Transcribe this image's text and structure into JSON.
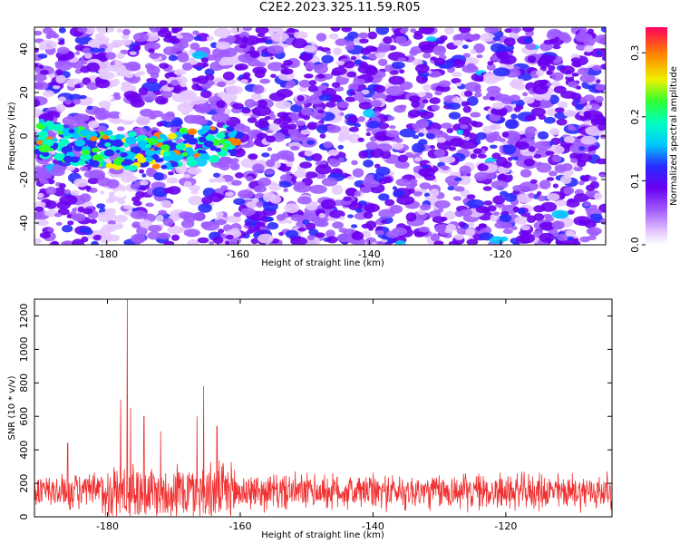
{
  "title": "C2E2.2023.325.11.59.R05",
  "chart_data": [
    {
      "type": "heatmap",
      "xlabel": "Height of straight line (km)",
      "ylabel": "Frequency (Hz)",
      "xlim": [
        -191,
        -104
      ],
      "ylim": [
        -50,
        50
      ],
      "xticks": [
        -180,
        -160,
        -140,
        -120
      ],
      "yticks": [
        -40,
        -20,
        0,
        20,
        40
      ],
      "colorbar": {
        "label": "Normalized spectral amplitude",
        "range": [
          0.0,
          0.34
        ],
        "ticks": [
          0.0,
          0.1,
          0.2,
          0.3
        ],
        "colormap": [
          "#ffffff",
          "#e6c8ff",
          "#a05cff",
          "#6a00f0",
          "#2a2aff",
          "#00c8ff",
          "#00ffc0",
          "#30ff30",
          "#f0f000",
          "#ff8000",
          "#ff0060"
        ]
      },
      "signal_band": {
        "note_x_range": [
          -191,
          -160
        ],
        "center_frequency_start": 3,
        "center_frequency_end": -6
      }
    },
    {
      "type": "line",
      "xlabel": "Height of straight line (km)",
      "ylabel": "SNR (10 * v/v)",
      "xlim": [
        -191,
        -104
      ],
      "ylim": [
        0,
        1300
      ],
      "xticks": [
        -180,
        -160,
        -140,
        -120
      ],
      "yticks": [
        0,
        200,
        400,
        600,
        800,
        1000,
        1200
      ],
      "series": [
        {
          "color": "#f03030",
          "baseline": 150,
          "noise_amplitude": 130,
          "peaks": [
            {
              "x": -177.0,
              "y": 1300
            },
            {
              "x": -178.0,
              "y": 700
            },
            {
              "x": -176.5,
              "y": 650
            },
            {
              "x": -174.5,
              "y": 600
            },
            {
              "x": -165.5,
              "y": 780
            },
            {
              "x": -166.5,
              "y": 600
            },
            {
              "x": -163.5,
              "y": 540
            },
            {
              "x": -186.0,
              "y": 440
            },
            {
              "x": -172.0,
              "y": 510
            }
          ]
        }
      ]
    }
  ]
}
